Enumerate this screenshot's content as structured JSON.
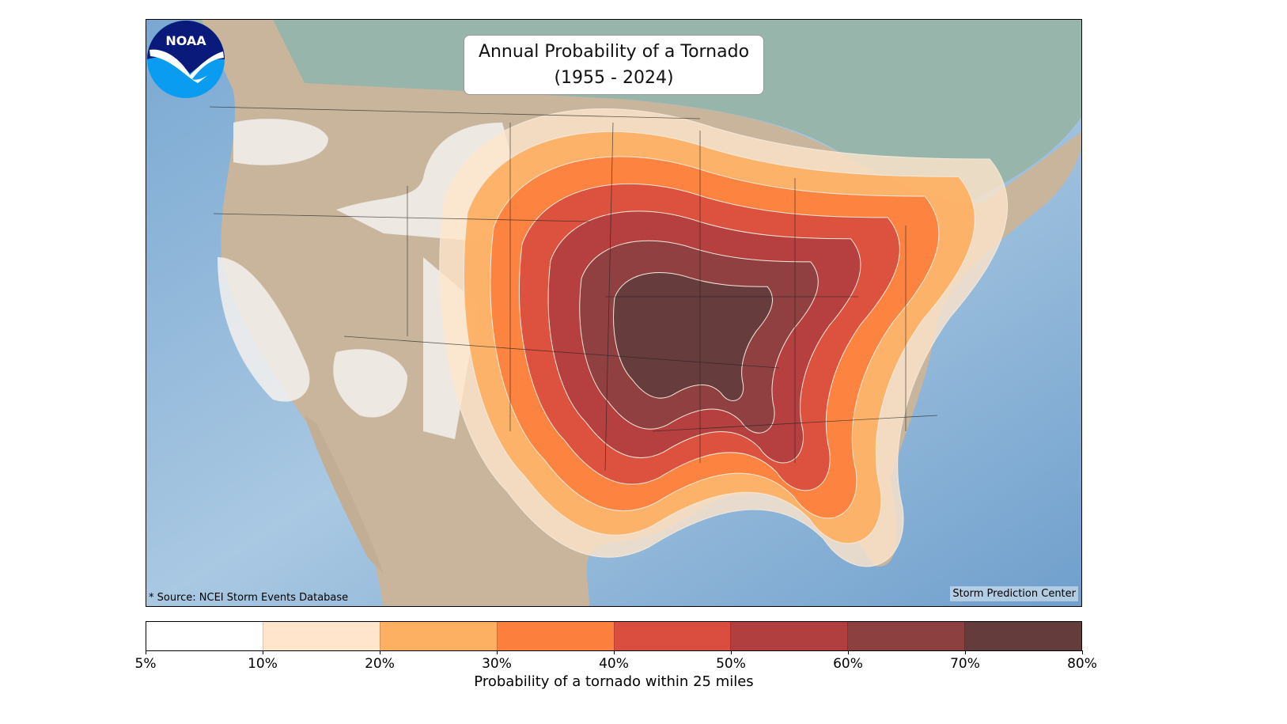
{
  "title": {
    "line1": "Annual Probability of a Tornado",
    "line2": "(1955 - 2024)"
  },
  "source": "* Source: NCEI Storm Events Database",
  "credit": "Storm Prediction Center",
  "logo": {
    "text": "NOAA",
    "icon": "noaa-logo"
  },
  "colorbar": {
    "label": "Probability of a tornado within 25 miles",
    "ticks": [
      "5%",
      "10%",
      "20%",
      "30%",
      "40%",
      "50%",
      "60%",
      "70%",
      "80%"
    ],
    "colors": [
      "#ffffff",
      "#fee5cb",
      "#fdb062",
      "#fd7f3d",
      "#d94e3f",
      "#b13f3f",
      "#8d4040",
      "#643c3c"
    ]
  },
  "map_colors": {
    "ocean": "#8fb6d8",
    "land_us": "#c8b49a",
    "land_canada": "#93b3a8",
    "contour_line": "#f3e9dc"
  }
}
